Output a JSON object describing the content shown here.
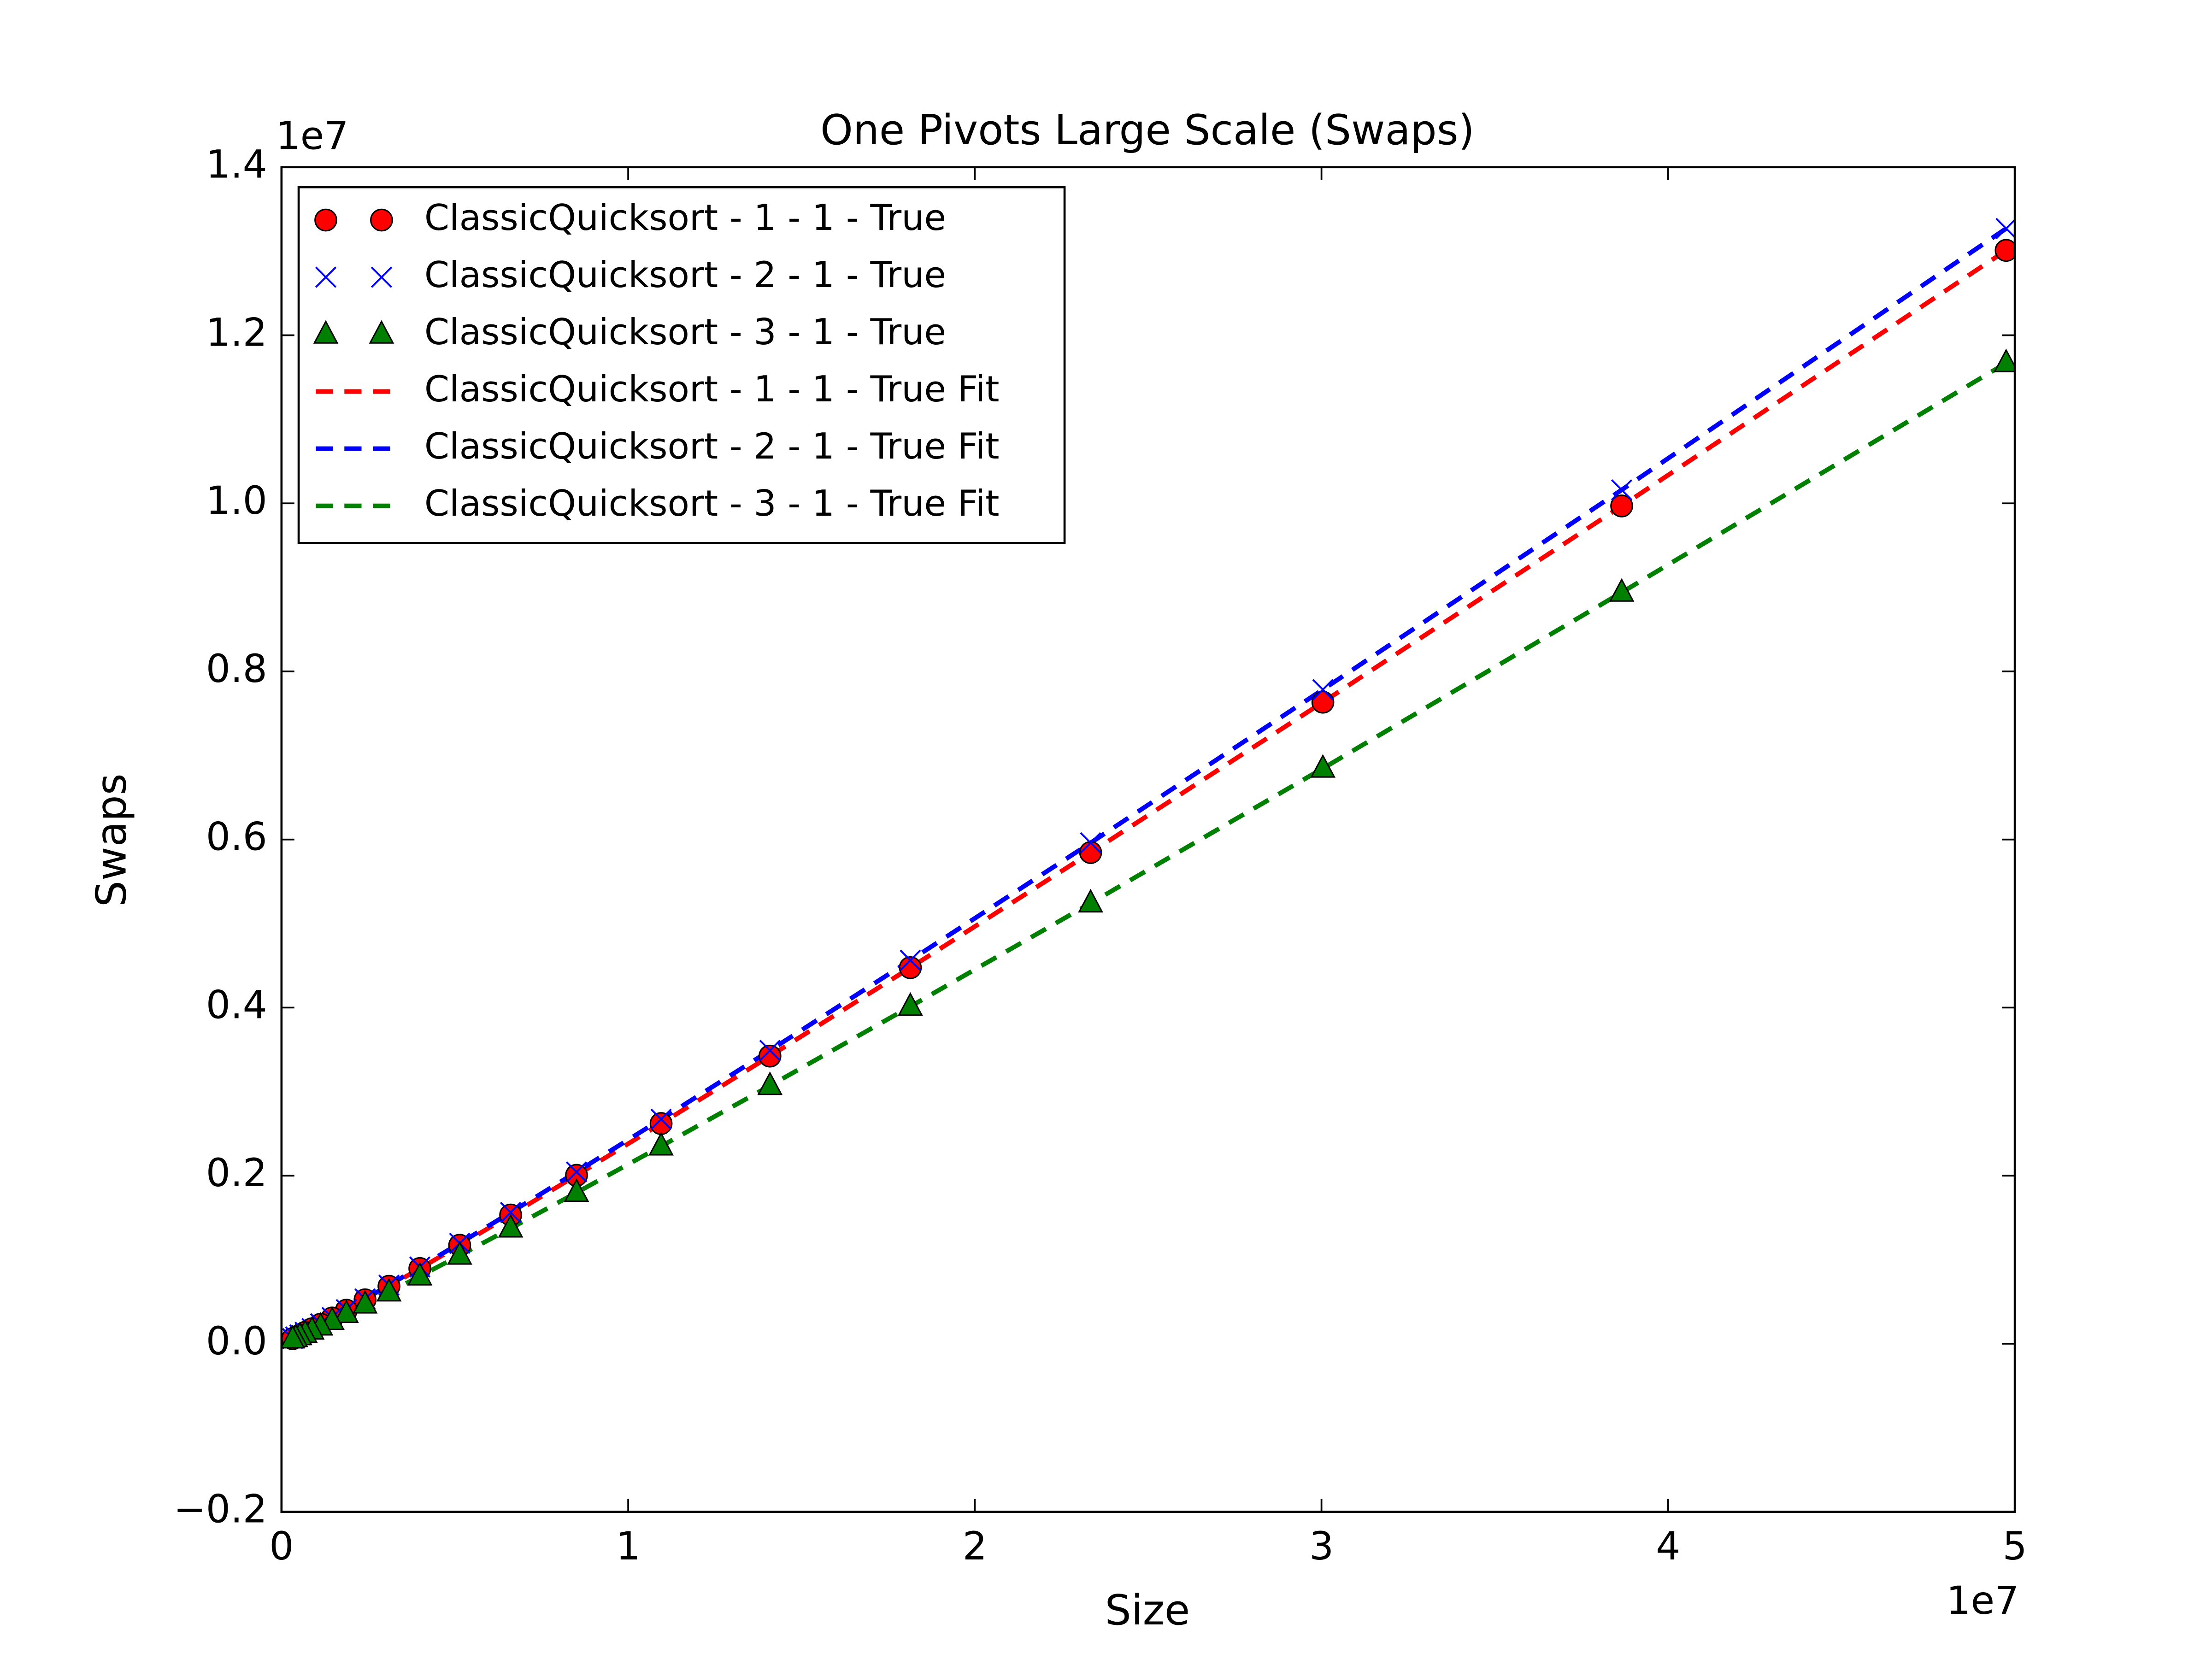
{
  "chart_data": {
    "type": "scatter",
    "title": "One Pivots Large Scale (Swaps)",
    "x_label": "Size",
    "y_label": "Swaps",
    "x_offset_label": "1e7",
    "y_offset_label": "1e7",
    "legend": "upper left",
    "x": [
      49750000,
      38660000,
      30040000,
      23340000,
      18140000,
      14090000,
      10950000,
      8510000,
      6610000,
      5140000,
      3990000,
      3100000,
      2410000,
      1870000,
      1460000,
      1130000,
      880000,
      680000,
      530000,
      410000,
      320000
    ],
    "series": [
      {
        "name": "ClassicQuicksort - 1 - 1 - True",
        "color": "#ff0000",
        "marker": "circle",
        "line": "none",
        "values": [
          13010000,
          9969000,
          7634000,
          5845000,
          4475000,
          3423000,
          2620000,
          2004000,
          1532000,
          1172000,
          895000,
          684000,
          523000,
          399000,
          306000,
          232000,
          178000,
          135000,
          103000,
          78000,
          60000
        ]
      },
      {
        "name": "ClassicQuicksort - 2 - 1 - True",
        "color": "#0000ff",
        "marker": "x",
        "line": "none",
        "values": [
          13270000,
          10160000,
          7784000,
          5960000,
          4563000,
          3490000,
          2671000,
          2044000,
          1562000,
          1195000,
          913000,
          697000,
          533000,
          406000,
          312000,
          237000,
          181000,
          137000,
          105000,
          80000,
          61000
        ]
      },
      {
        "name": "ClassicQuicksort - 3 - 1 - True",
        "color": "#008000",
        "marker": "triangle",
        "line": "none",
        "values": [
          11670000,
          8940000,
          6846000,
          5242000,
          4013000,
          3070000,
          2350000,
          1798000,
          1374000,
          1051000,
          803000,
          613000,
          469000,
          357000,
          274000,
          208000,
          160000,
          121000,
          92000,
          70000,
          54000
        ]
      },
      {
        "name": "ClassicQuicksort - 1 - 1 - True Fit",
        "color": "#ff0000",
        "marker": "none",
        "line": "dashed",
        "values": [
          13010000,
          9969000,
          7634000,
          5845000,
          4475000,
          3423000,
          2620000,
          2004000,
          1532000,
          1172000,
          895000,
          684000,
          523000,
          399000,
          306000,
          232000,
          178000,
          135000,
          103000,
          78000,
          60000
        ]
      },
      {
        "name": "ClassicQuicksort - 2 - 1 - True Fit",
        "color": "#0000ff",
        "marker": "none",
        "line": "dashed",
        "values": [
          13270000,
          10160000,
          7784000,
          5960000,
          4563000,
          3490000,
          2671000,
          2044000,
          1562000,
          1195000,
          913000,
          697000,
          533000,
          406000,
          312000,
          237000,
          181000,
          137000,
          105000,
          80000,
          61000
        ]
      },
      {
        "name": "ClassicQuicksort - 3 - 1 - True Fit",
        "color": "#008000",
        "marker": "none",
        "line": "dashed",
        "values": [
          11670000,
          8940000,
          6846000,
          5242000,
          4013000,
          3070000,
          2350000,
          1798000,
          1374000,
          1051000,
          803000,
          613000,
          469000,
          357000,
          274000,
          208000,
          160000,
          121000,
          92000,
          70000,
          54000
        ]
      }
    ],
    "xlim": [
      0,
      50000000
    ],
    "xticks": [
      0,
      {
        "value": 10000000,
        "label": "1"
      },
      {
        "value": 20000000,
        "label": "2"
      },
      {
        "value": 30000000,
        "label": "3"
      },
      {
        "value": 40000000,
        "label": "4"
      },
      {
        "value": 50000000,
        "label": "5"
      }
    ],
    "ylim": [
      -2000000,
      14000000
    ],
    "yticks": [
      {
        "value": -2000000,
        "label": "−0.2"
      },
      {
        "value": 0,
        "label": "0.0"
      },
      {
        "value": 2000000,
        "label": "0.2"
      },
      {
        "value": 4000000,
        "label": "0.4"
      },
      {
        "value": 6000000,
        "label": "0.6"
      },
      {
        "value": 8000000,
        "label": "0.8"
      },
      {
        "value": 10000000,
        "label": "1.0"
      },
      {
        "value": 12000000,
        "label": "1.2"
      },
      {
        "value": 14000000,
        "label": "1.4"
      }
    ],
    "grid": false
  }
}
